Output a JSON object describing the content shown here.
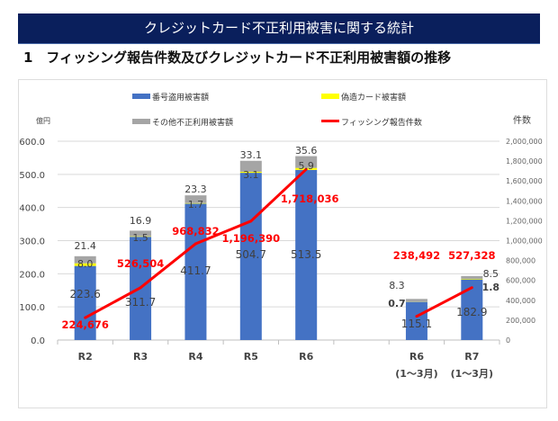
{
  "header": {
    "title": "クレジットカード不正利用被害に関する統計",
    "subtitle": "1　フィッシング報告件数及びクレジットカード不正利用被害額の推移"
  },
  "chart_data": {
    "type": "bar+line",
    "categories": [
      "R2",
      "R3",
      "R4",
      "R5",
      "R6",
      "",
      "R6\n(1〜3月)",
      "R7\n(1〜3月)"
    ],
    "category_labels": [
      [
        "R2"
      ],
      [
        "R3"
      ],
      [
        "R4"
      ],
      [
        "R5"
      ],
      [
        "R6"
      ],
      [],
      [
        "R6",
        "(1〜3月)"
      ],
      [
        "R7",
        "(1〜3月)"
      ]
    ],
    "y_left": {
      "label": "億円",
      "range": [
        0,
        600
      ],
      "ticks": [
        "0.0",
        "100.0",
        "200.0",
        "300.0",
        "400.0",
        "500.0",
        "600.0"
      ]
    },
    "y_right": {
      "label": "件数",
      "range": [
        0,
        2000000
      ],
      "ticks": [
        "0",
        "200,000",
        "400,000",
        "600,000",
        "800,000",
        "1,000,000",
        "1,200,000",
        "1,400,000",
        "1,600,000",
        "1,800,000",
        "2,000,000"
      ]
    },
    "grid": true,
    "legend": "top",
    "series": [
      {
        "name": "番号盗用被害額",
        "type": "bar",
        "color": "#4472c4",
        "values": [
          223.6,
          311.7,
          411.7,
          504.7,
          513.5,
          null,
          115.1,
          182.9
        ],
        "labels": [
          "223.6",
          "311.7",
          "411.7",
          "504.7",
          "513.5",
          "",
          "115.1",
          "182.9"
        ]
      },
      {
        "name": "偽造カード被害額",
        "type": "bar",
        "color": "#ffff00",
        "values": [
          8.0,
          1.5,
          1.7,
          3.1,
          5.9,
          null,
          0.7,
          1.8
        ],
        "labels": [
          "8.0",
          "1.5",
          "1.7",
          "3.1",
          "5.9",
          "",
          "0.7",
          "1.8"
        ]
      },
      {
        "name": "その他不正利用被害額",
        "type": "bar",
        "color": "#a5a5a5",
        "values": [
          21.4,
          16.9,
          23.3,
          33.1,
          35.6,
          null,
          8.3,
          8.5
        ],
        "labels": [
          "21.4",
          "16.9",
          "23.3",
          "33.1",
          "35.6",
          "",
          "8.3",
          "8.5"
        ]
      },
      {
        "name": "フィッシング報告件数",
        "type": "line",
        "axis": "right",
        "color": "#ff0000",
        "values": [
          224676,
          526504,
          968832,
          1196390,
          1718036,
          null,
          238492,
          527328
        ],
        "labels": [
          "224,676",
          "526,504",
          "968,832",
          "1,196,390",
          "1,718,036",
          "",
          "238,492",
          "527,328"
        ]
      }
    ]
  }
}
